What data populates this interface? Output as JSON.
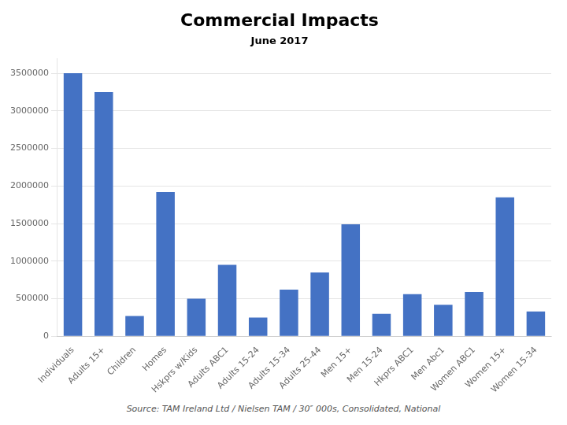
{
  "chart_data": {
    "type": "bar",
    "title": "Commercial Impacts",
    "subtitle": "June 2017",
    "annotations": [
      "Source: TAM Ireland Ltd / Nielsen TAM / 30″ 000s, Consolidated, National"
    ],
    "categories": [
      "Individuals",
      "Adults 15+",
      "Children",
      "Homes",
      "Hskprs w/Kids",
      "Adults ABC1",
      "Adults 15-24",
      "Adults 15-34",
      "Adults 25-44",
      "Men 15+",
      "Men 15-24",
      "Hkprs ABC1",
      "Men Abc1",
      "Women ABC1",
      "Women 15+",
      "Women 15-34"
    ],
    "values": [
      3500000,
      3250000,
      270000,
      1920000,
      500000,
      950000,
      250000,
      620000,
      850000,
      1490000,
      300000,
      560000,
      420000,
      590000,
      1850000,
      330000
    ],
    "color": "#4472C4",
    "ylim": [
      0,
      3700000
    ],
    "yticks": [
      0,
      500000,
      1000000,
      1500000,
      2000000,
      2500000,
      3000000,
      3500000
    ],
    "grid": true
  }
}
